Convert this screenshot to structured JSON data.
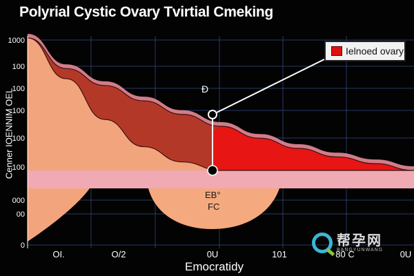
{
  "chart_data": {
    "type": "area",
    "title": "Polyrial Cystic Ovary Tvirtial Cmeking",
    "xlabel": "Emocratidy",
    "ylabel": "Cenner IOENNIM OEL",
    "x_tick_labels": [
      "OI.",
      "O/2",
      "0U",
      "101",
      "80 C",
      "0U"
    ],
    "y_tick_labels": [
      "1000",
      "100",
      "100",
      "100",
      "100",
      "100",
      "000",
      "00",
      "0"
    ],
    "legend": {
      "label": "Ielnoed ovary",
      "color": "#e01010",
      "placement": "top-right"
    },
    "annotations": [
      {
        "label": "Ð",
        "target": "upper-point"
      },
      {
        "label": "EB°",
        "target": "lower-region"
      },
      {
        "label": "FC",
        "target": "lower-region"
      }
    ],
    "grid": true,
    "series": [
      {
        "name": "Ielnoed ovary",
        "color": "#e01010",
        "x": [
          0,
          0.1,
          0.2,
          0.3,
          0.4,
          0.5,
          0.6,
          0.7,
          0.8,
          0.9,
          1.0
        ],
        "y": [
          100,
          82,
          72,
          63,
          55,
          48,
          41,
          35,
          30,
          26,
          22
        ]
      },
      {
        "color": "#f0a078",
        "x": [
          0,
          0.1,
          0.2,
          0.3,
          0.4,
          0.5,
          0.6,
          0.7,
          0.8,
          0.9,
          1.0
        ],
        "y": [
          100,
          76,
          52,
          36,
          27,
          22,
          22,
          22,
          22,
          22,
          22
        ]
      }
    ]
  },
  "watermark": {
    "main": "帮孕网",
    "sub": "BANGYUNWANG"
  }
}
